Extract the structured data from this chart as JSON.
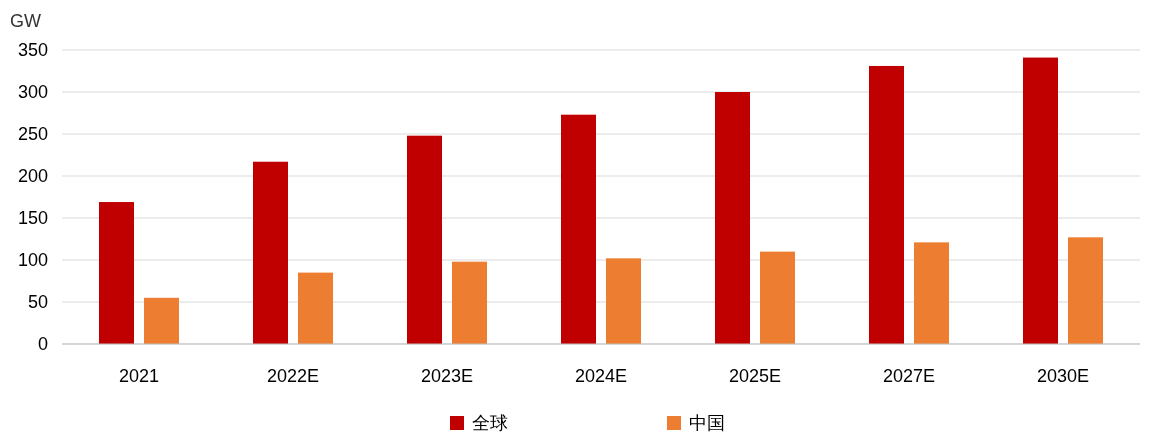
{
  "chart_data": {
    "type": "bar",
    "ylabel": "GW",
    "categories": [
      "2021",
      "2022E",
      "2023E",
      "2024E",
      "2025E",
      "2027E",
      "2030E"
    ],
    "series": [
      {
        "name": "全球",
        "color": "#c00000",
        "values": [
          169,
          217,
          248,
          273,
          300,
          331,
          341
        ]
      },
      {
        "name": "中国",
        "color": "#ed7d31",
        "values": [
          55,
          85,
          98,
          102,
          110,
          121,
          127
        ]
      }
    ],
    "ylim": [
      0,
      350
    ],
    "yticks": [
      0,
      50,
      100,
      150,
      200,
      250,
      300,
      350
    ],
    "grid": "y",
    "legend": "bottom"
  }
}
